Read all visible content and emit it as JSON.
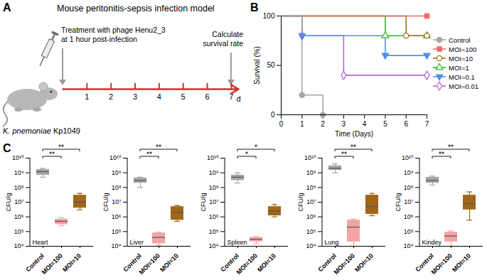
{
  "chart_data": [
    {
      "type": "timeline",
      "panel_label": "A",
      "title": "Mouse peritonitis-sepsis infection model",
      "xlim": [
        0,
        7.3
      ],
      "xticks": [
        1,
        2,
        3,
        4,
        5,
        6,
        7
      ],
      "x_label": "d",
      "color": "#d0312d",
      "annotations": [
        {
          "x": 0,
          "lines": [
            "Treatment with phage Henu2_3",
            "at 1 hour post-infection"
          ]
        },
        {
          "x": 7,
          "lines": [
            "Calculate",
            "survival rate"
          ]
        }
      ],
      "caption": "K. pnemoniae Kp1049"
    },
    {
      "type": "line",
      "panel_label": "B",
      "x_label": "Time (Days)",
      "y_label": "Survival (%)",
      "x": [
        0,
        1,
        2,
        3,
        4,
        5,
        6,
        7
      ],
      "xlim": [
        0,
        7
      ],
      "xticks": [
        0,
        1,
        2,
        3,
        4,
        5,
        6,
        7
      ],
      "ylim": [
        0,
        100
      ],
      "yticks": [
        0,
        50,
        100
      ],
      "legend": "right",
      "series": [
        {
          "name": "Control",
          "color": "#a8a8a8",
          "marker": "circle",
          "values": [
            100,
            20,
            0,
            null,
            null,
            null,
            null,
            null
          ]
        },
        {
          "name": "MOI=100",
          "color": "#f26b6b",
          "marker": "square",
          "values": [
            100,
            100,
            100,
            100,
            100,
            100,
            100,
            100
          ]
        },
        {
          "name": "MOI=10",
          "color": "#9c7424",
          "marker": "circle-open",
          "values": [
            100,
            100,
            100,
            100,
            100,
            100,
            80,
            80
          ]
        },
        {
          "name": "MOI=1",
          "color": "#2eb82e",
          "marker": "triangle-open",
          "values": [
            100,
            100,
            100,
            100,
            100,
            80,
            80,
            80
          ]
        },
        {
          "name": "MOI=0.1",
          "color": "#4f8fe6",
          "marker": "triangle-down",
          "values": [
            100,
            80,
            80,
            80,
            80,
            60,
            60,
            60
          ]
        },
        {
          "name": "MOI=0.01",
          "color": "#b366d9",
          "marker": "diamond-open",
          "values": [
            100,
            80,
            80,
            40,
            40,
            40,
            40,
            40
          ]
        }
      ]
    },
    {
      "type": "box",
      "panel_label": "C",
      "title": "Heart",
      "y_label": "CFU/g",
      "log": "y",
      "categories": [
        "Control",
        "MOI=100",
        "MOI=10"
      ],
      "colors": [
        "#a5a5a5",
        "#f5a3a3",
        "#a0661a"
      ],
      "ylim": [
        10000.0,
        10000000000.0
      ],
      "yticks": [
        {
          "value": 10000.0,
          "label": "10⁴"
        },
        {
          "value": 100000.0,
          "label": "10⁵"
        },
        {
          "value": 1000000.0,
          "label": "10⁶"
        },
        {
          "value": 10000000.0,
          "label": "10⁷"
        },
        {
          "value": 100000000.0,
          "label": "10⁸"
        },
        {
          "value": 1000000000.0,
          "label": "10⁹"
        },
        {
          "value": 10000000000.0,
          "label": "10¹⁰"
        }
      ],
      "min": [
        500000000.0,
        250000.0,
        3000000.0
      ],
      "q1": [
        700000000.0,
        300000.0,
        4000000.0
      ],
      "median": [
        1200000000.0,
        500000.0,
        10000000.0
      ],
      "q3": [
        1700000000.0,
        700000.0,
        30000000.0
      ],
      "max": [
        2000000000.0,
        900000.0,
        40000000.0
      ],
      "annotations": [
        {
          "from": "Control",
          "to": "MOI=100",
          "label": "**"
        },
        {
          "from": "Control",
          "to": "MOI=10",
          "label": "**"
        }
      ]
    },
    {
      "type": "box",
      "title": "Liver",
      "y_label": "CFU/g",
      "log": "y",
      "categories": [
        "Control",
        "MOI=100",
        "MOI=10"
      ],
      "colors": [
        "#a5a5a5",
        "#f5a3a3",
        "#a0661a"
      ],
      "ylim": [
        10000.0,
        10000000000.0
      ],
      "yticks": [
        {
          "value": 10000.0,
          "label": "10⁴"
        },
        {
          "value": 100000.0,
          "label": "10⁵"
        },
        {
          "value": 1000000.0,
          "label": "10⁶"
        },
        {
          "value": 10000000.0,
          "label": "10⁷"
        },
        {
          "value": 100000000.0,
          "label": "10⁸"
        },
        {
          "value": 1000000000.0,
          "label": "10⁹"
        },
        {
          "value": 10000000000.0,
          "label": "10¹⁰"
        }
      ],
      "min": [
        100000000.0,
        12000.0,
        500000.0
      ],
      "q1": [
        200000000.0,
        15000.0,
        600000.0
      ],
      "median": [
        300000000.0,
        40000.0,
        2000000.0
      ],
      "q3": [
        450000000.0,
        80000.0,
        5000000.0
      ],
      "max": [
        500000000.0,
        90000.0,
        6000000.0
      ],
      "annotations": [
        {
          "from": "Control",
          "to": "MOI=100",
          "label": "**"
        },
        {
          "from": "Control",
          "to": "MOI=10",
          "label": "**"
        }
      ]
    },
    {
      "type": "box",
      "title": "Spleen",
      "y_label": "CFU/g",
      "log": "y",
      "categories": [
        "Control",
        "MOI=100",
        "MOI=10"
      ],
      "colors": [
        "#a5a5a5",
        "#f5a3a3",
        "#a0661a"
      ],
      "ylim": [
        10000.0,
        10000000000.0
      ],
      "yticks": [
        {
          "value": 10000.0,
          "label": "10⁴"
        },
        {
          "value": 100000.0,
          "label": "10⁵"
        },
        {
          "value": 1000000.0,
          "label": "10⁶"
        },
        {
          "value": 10000000.0,
          "label": "10⁷"
        },
        {
          "value": 100000000.0,
          "label": "10⁸"
        },
        {
          "value": 1000000000.0,
          "label": "10⁹"
        },
        {
          "value": 10000000000.0,
          "label": "10¹⁰"
        }
      ],
      "min": [
        200000000.0,
        15000.0,
        1000000.0
      ],
      "q1": [
        300000000.0,
        20000.0,
        1200000.0
      ],
      "median": [
        500000000.0,
        30000.0,
        2500000.0
      ],
      "q3": [
        700000000.0,
        40000.0,
        5000000.0
      ],
      "max": [
        1000000000.0,
        45000.0,
        7000000.0
      ],
      "annotations": [
        {
          "from": "Control",
          "to": "MOI=100",
          "label": "*"
        },
        {
          "from": "Control",
          "to": "MOI=10",
          "label": "*"
        }
      ]
    },
    {
      "type": "box",
      "title": "Lung",
      "y_label": "CFU/g",
      "log": "y",
      "categories": [
        "Control",
        "MOI=100",
        "MOI=10"
      ],
      "colors": [
        "#a5a5a5",
        "#f5a3a3",
        "#a0661a"
      ],
      "ylim": [
        10000.0,
        10000000000.0
      ],
      "yticks": [
        {
          "value": 10000.0,
          "label": "10⁴"
        },
        {
          "value": 100000.0,
          "label": "10⁵"
        },
        {
          "value": 1000000.0,
          "label": "10⁶"
        },
        {
          "value": 10000000.0,
          "label": "10⁷"
        },
        {
          "value": 100000000.0,
          "label": "10⁸"
        },
        {
          "value": 1000000000.0,
          "label": "10⁹"
        },
        {
          "value": 10000000000.0,
          "label": "10¹⁰"
        }
      ],
      "min": [
        1000000000.0,
        10000.0,
        1200000.0
      ],
      "q1": [
        1500000000.0,
        20000.0,
        1500000.0
      ],
      "median": [
        2000000000.0,
        200000.0,
        5000000.0
      ],
      "q3": [
        3000000000.0,
        600000.0,
        30000000.0
      ],
      "max": [
        4000000000.0,
        700000.0,
        40000000.0
      ],
      "annotations": [
        {
          "from": "Control",
          "to": "MOI=100",
          "label": "**"
        },
        {
          "from": "Control",
          "to": "MOI=10",
          "label": "**"
        }
      ]
    },
    {
      "type": "box",
      "title": "Kindey",
      "y_label": "CFU/g",
      "log": "y",
      "categories": [
        "Control",
        "MOI=100",
        "MOI=10"
      ],
      "colors": [
        "#a5a5a5",
        "#f5a3a3",
        "#a0661a"
      ],
      "ylim": [
        10000.0,
        10000000000.0
      ],
      "yticks": [
        {
          "value": 10000.0,
          "label": "10⁴"
        },
        {
          "value": 100000.0,
          "label": "10⁵"
        },
        {
          "value": 1000000.0,
          "label": "10⁶"
        },
        {
          "value": 10000000.0,
          "label": "10⁷"
        },
        {
          "value": 100000000.0,
          "label": "10⁸"
        },
        {
          "value": 1000000000.0,
          "label": "10⁹"
        },
        {
          "value": 10000000000.0,
          "label": "10¹⁰"
        }
      ],
      "min": [
        150000000.0,
        10000.0,
        600000.0
      ],
      "q1": [
        200000000.0,
        20000.0,
        3000000.0
      ],
      "median": [
        300000000.0,
        50000.0,
        8000000.0
      ],
      "q3": [
        500000000.0,
        90000.0,
        30000000.0
      ],
      "max": [
        600000000.0,
        110000.0,
        50000000.0
      ],
      "annotations": [
        {
          "from": "Control",
          "to": "MOI=100",
          "label": "**"
        },
        {
          "from": "Control",
          "to": "MOI=10",
          "label": "**"
        }
      ]
    }
  ]
}
